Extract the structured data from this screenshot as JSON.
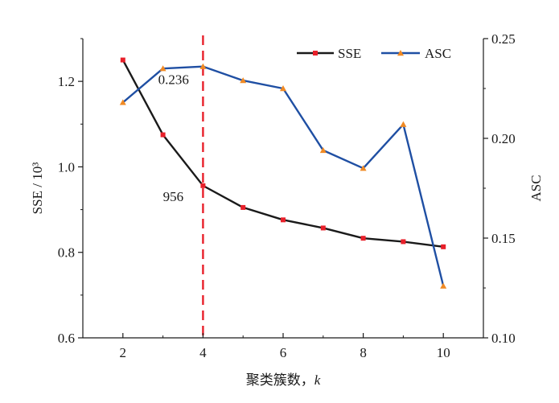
{
  "chart_data": {
    "type": "line",
    "x": [
      2,
      3,
      4,
      5,
      6,
      7,
      8,
      9,
      10
    ],
    "x_ticks": [
      "2",
      "4",
      "6",
      "8",
      "10"
    ],
    "xlim": [
      1,
      11
    ],
    "xlabel_main": "聚类簇数，",
    "xlabel_var": "k",
    "ylabel_left": "SSE / 10³",
    "ylim_left": [
      0.6,
      1.3
    ],
    "y_ticks_left": [
      "0.6",
      "0.8",
      "1.0",
      "1.2"
    ],
    "ylabel_right": "ASC",
    "ylim_right": [
      0.1,
      0.25
    ],
    "y_ticks_right": [
      "0.10",
      "0.15",
      "0.20",
      "0.25"
    ],
    "series": [
      {
        "name": "SSE",
        "axis": "left",
        "values": [
          1.25,
          1.075,
          0.956,
          0.905,
          0.876,
          0.857,
          0.833,
          0.825,
          0.813
        ],
        "line_color": "#1a1a1a",
        "marker": "square",
        "marker_color": "#e8202a"
      },
      {
        "name": "ASC",
        "axis": "right",
        "values": [
          0.218,
          0.235,
          0.236,
          0.229,
          0.225,
          0.194,
          0.185,
          0.207,
          0.126
        ],
        "line_color": "#1f4fa3",
        "marker": "triangle",
        "marker_color": "#f08a24"
      }
    ],
    "reference_line": {
      "x": 4,
      "color": "#e8202a",
      "style": "dashed"
    },
    "annotations": [
      "0.236",
      "956"
    ],
    "legend_position": "top-right",
    "grid": false
  }
}
